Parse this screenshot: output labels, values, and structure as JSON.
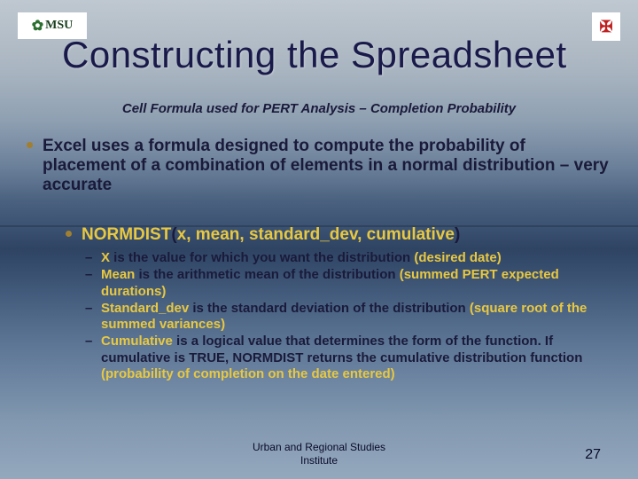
{
  "logo_left": {
    "leaf": "✿",
    "text": "MSU"
  },
  "logo_right_symbol": "✠",
  "title": "Constructing the Spreadsheet",
  "subtitle": "Cell Formula used for PERT Analysis – Completion Probability",
  "bullet1": "Excel uses a formula designed to compute the probability of placement of a combination of elements in a normal distribution – very accurate",
  "bullet2": {
    "fn": "NORMDIST",
    "open": "(",
    "args": "x, mean, standard_dev, cumulative",
    "close": ")"
  },
  "sub": [
    {
      "term": "X",
      "desc": "  is the value for which you want the distribution ",
      "yellow": "(desired date)"
    },
    {
      "term": "Mean",
      "desc": "  is the arithmetic mean of the distribution ",
      "yellow": "(summed PERT expected durations)"
    },
    {
      "term": "Standard_dev",
      "desc": "  is the standard deviation of the distribution ",
      "yellow": "(square root of the summed variances)"
    },
    {
      "term": "Cumulative",
      "desc": "  is a logical value that determines the form of the function. If cumulative is TRUE, NORMDIST returns the cumulative distribution function ",
      "yellow": "(probability of completion on the date entered)"
    }
  ],
  "footer": {
    "line1": "Urban and Regional Studies",
    "line2": "Institute"
  },
  "page_number": "27",
  "colors": {
    "yellow": "#e8c840",
    "bullet_dot": "#a08030",
    "text": "#1a1a3a"
  }
}
